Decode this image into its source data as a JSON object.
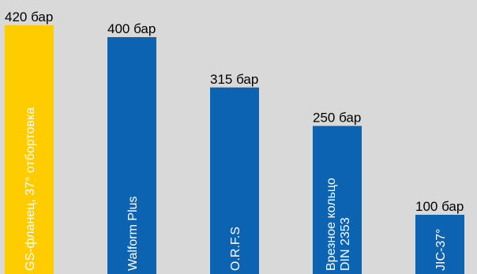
{
  "chart_data": {
    "type": "bar",
    "categories": [
      [
        "GS-фланец, 37° отбортовка"
      ],
      [
        "Walform Plus"
      ],
      [
        "O.R.F.S"
      ],
      [
        "Врезное кольцо",
        "DIN 2353"
      ],
      [
        "JIC-37°"
      ]
    ],
    "values": [
      420,
      400,
      315,
      250,
      100
    ],
    "value_labels": [
      "420 бар",
      "400 бар",
      "315 бар",
      "250 бар",
      "100 бар"
    ],
    "colors": [
      "#ffcc00",
      "#0b63b2",
      "#0b63b2",
      "#0b63b2",
      "#0b63b2"
    ],
    "ylim": [
      0,
      420
    ],
    "grid": false,
    "legend": "none"
  }
}
